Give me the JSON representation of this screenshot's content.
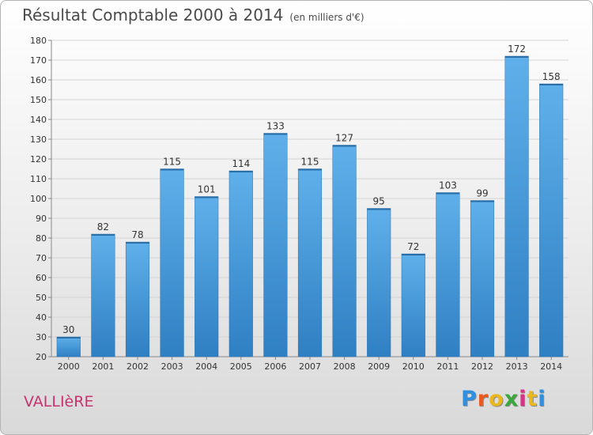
{
  "title": "Résultat Comptable 2000 à 2014",
  "subtitle": "(en milliers d'€)",
  "commune": "VALLIèRE",
  "logo": {
    "text": "Proxiti",
    "letter_colors": [
      "#2f8fe0",
      "#e85a1e",
      "#e8b81e",
      "#3aa83a",
      "#d63384",
      "#e8b81e",
      "#2f8fe0"
    ]
  },
  "colors": {
    "bar_top": "#5fb0ea",
    "bar_bottom": "#2f7fc3",
    "axis": "#888888",
    "grid": "#d4d4d4",
    "text": "#333333"
  },
  "chart_data": {
    "type": "bar",
    "title": "Résultat Comptable 2000 à 2014",
    "categories": [
      "2000",
      "2001",
      "2002",
      "2003",
      "2004",
      "2005",
      "2006",
      "2007",
      "2008",
      "2009",
      "2010",
      "2011",
      "2012",
      "2013",
      "2014"
    ],
    "values": [
      30,
      82,
      78,
      115,
      101,
      114,
      133,
      115,
      127,
      95,
      72,
      103,
      99,
      172,
      158
    ],
    "ylim": [
      20,
      180
    ],
    "yticks": [
      20,
      30,
      40,
      50,
      60,
      70,
      80,
      90,
      100,
      110,
      120,
      130,
      140,
      150,
      160,
      170,
      180
    ],
    "grid": true,
    "data_labels": true
  }
}
